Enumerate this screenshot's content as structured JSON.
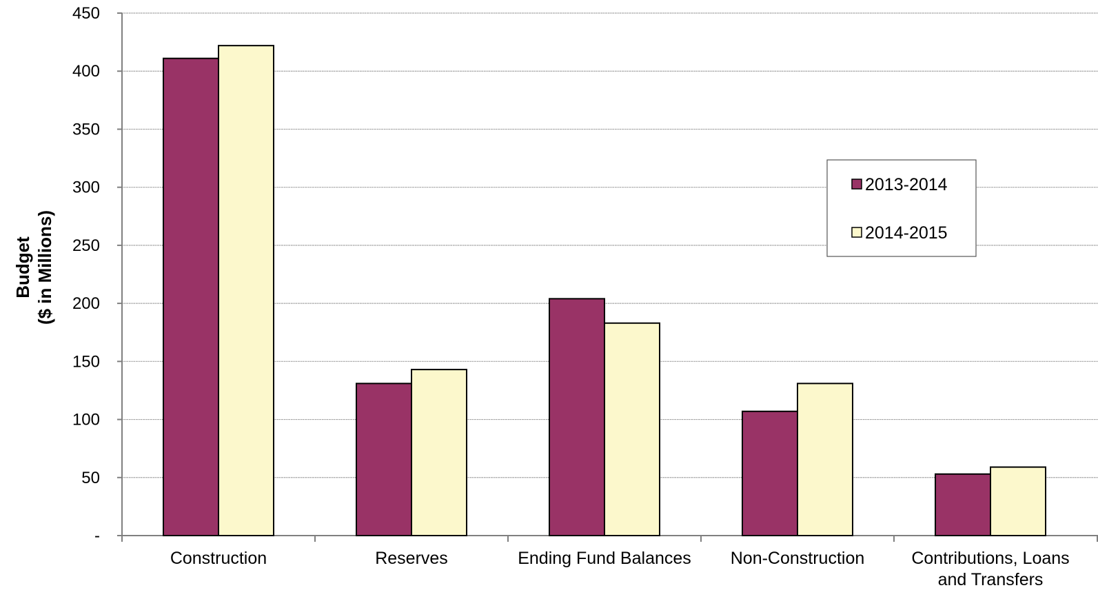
{
  "chart_data": {
    "type": "bar",
    "title": "",
    "xlabel": "",
    "ylabel_lines": [
      "Budget",
      "($ in Millions)"
    ],
    "categories": [
      [
        "Construction"
      ],
      [
        "Reserves"
      ],
      [
        "Ending Fund Balances"
      ],
      [
        "Non-Construction"
      ],
      [
        "Contributions, Loans",
        "and Transfers"
      ]
    ],
    "series": [
      {
        "name": "2013-2014",
        "color": "#993366",
        "values": [
          411,
          131,
          204,
          107,
          53
        ]
      },
      {
        "name": "2014-2015",
        "color": "#FCF8CC",
        "values": [
          422,
          143,
          183,
          131,
          59
        ]
      }
    ],
    "ylim": [
      0,
      450
    ],
    "yticks": [
      0,
      50,
      100,
      150,
      200,
      250,
      300,
      350,
      400,
      450
    ],
    "ytick_labels": [
      "-",
      "50",
      "100",
      "150",
      "200",
      "250",
      "300",
      "350",
      "400",
      "450"
    ],
    "grid": true,
    "legend_position": "right"
  }
}
